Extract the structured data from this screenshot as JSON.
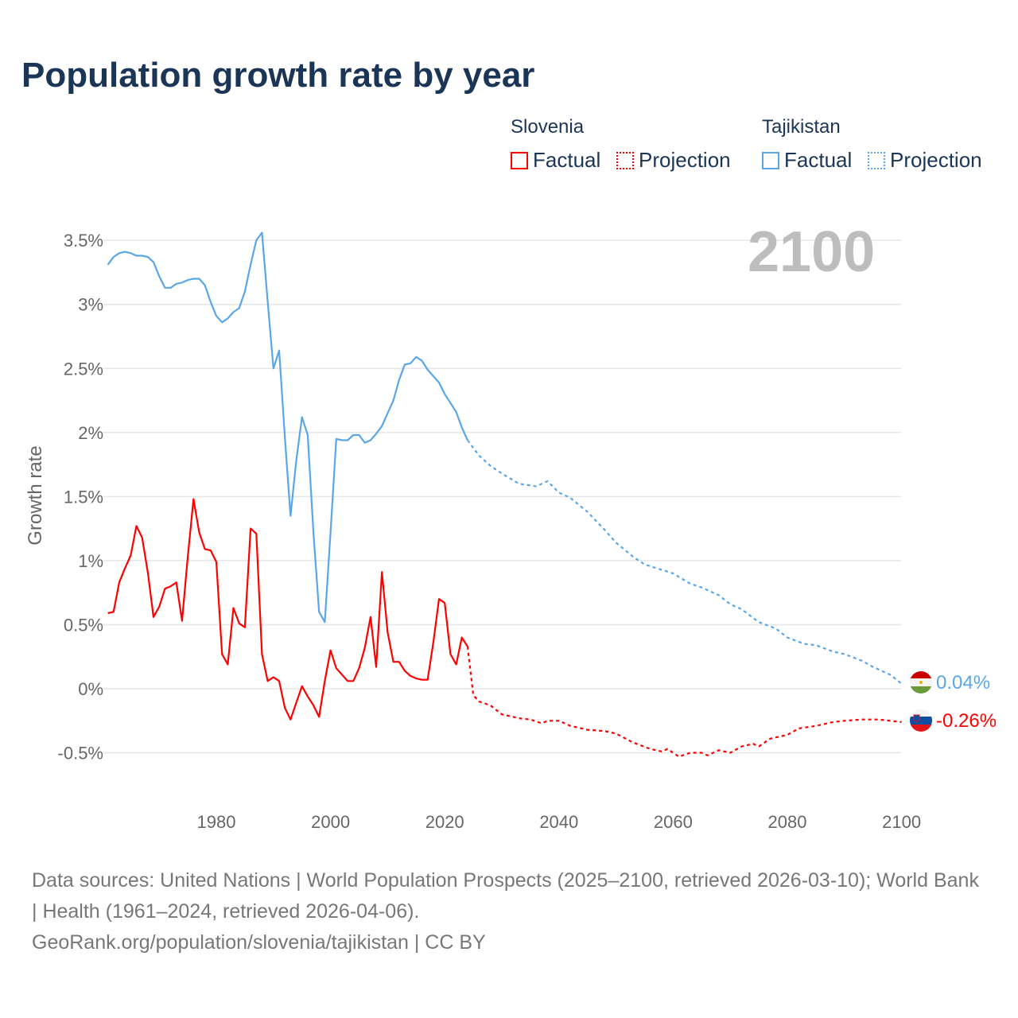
{
  "title": "Population growth rate by year",
  "legend": {
    "groups": [
      {
        "country": "Slovenia",
        "factual": "Factual",
        "projection": "Projection",
        "color": "#ff0000"
      },
      {
        "country": "Tajikistan",
        "factual": "Factual",
        "projection": "Projection",
        "color": "#5aa6ea"
      }
    ]
  },
  "year_display": "2100",
  "end_labels": {
    "tajikistan": "0.04%",
    "slovenia": "-0.26%"
  },
  "source": {
    "line1": "Data sources: United Nations | World Population Prospects (2025–2100, retrieved 2026-03-10); World Bank | Health (1961–2024, retrieved 2026-04-06).",
    "line2": "GeoRank.org/population/slovenia/tajikistan | CC BY"
  },
  "chart_data": {
    "type": "line",
    "title": "Population growth rate by year",
    "xlabel": "",
    "ylabel": "Growth rate",
    "xlim": [
      1961,
      2100
    ],
    "ylim": [
      -0.75,
      3.6
    ],
    "x_ticks": [
      {
        "v": 1980,
        "label": "1980"
      },
      {
        "v": 2000,
        "label": "2000"
      },
      {
        "v": 2020,
        "label": "2020"
      },
      {
        "v": 2040,
        "label": "2040"
      },
      {
        "v": 2060,
        "label": "2060"
      },
      {
        "v": 2080,
        "label": "2080"
      },
      {
        "v": 2100,
        "label": "2100"
      }
    ],
    "y_ticks": [
      {
        "v": -0.5,
        "label": "-0.5%"
      },
      {
        "v": 0,
        "label": "0%"
      },
      {
        "v": 0.5,
        "label": "0.5%"
      },
      {
        "v": 1,
        "label": "1%"
      },
      {
        "v": 1.5,
        "label": "1.5%"
      },
      {
        "v": 2,
        "label": "2%"
      },
      {
        "v": 2.5,
        "label": "2.5%"
      },
      {
        "v": 3,
        "label": "3%"
      },
      {
        "v": 3.5,
        "label": "3.5%"
      }
    ],
    "grid": true,
    "legend_placement": "top-right",
    "series": [
      {
        "name": "Tajikistan",
        "color": "#5aa6ea",
        "factual": {
          "x_start": 1961,
          "values": [
            3.31,
            3.37,
            3.4,
            3.41,
            3.4,
            3.38,
            3.38,
            3.37,
            3.33,
            3.22,
            3.13,
            3.13,
            3.16,
            3.17,
            3.19,
            3.2,
            3.2,
            3.15,
            3.02,
            2.91,
            2.86,
            2.89,
            2.94,
            2.97,
            3.1,
            3.31,
            3.5,
            3.56,
            3.02,
            2.5,
            2.64,
            1.96,
            1.35,
            1.78,
            2.12,
            1.98,
            1.22,
            0.6,
            0.52,
            1.22,
            1.95,
            1.94,
            1.94,
            1.98,
            1.98,
            1.92,
            1.94,
            1.99,
            2.05,
            2.15,
            2.25,
            2.41,
            2.53,
            2.54,
            2.59,
            2.56,
            2.49,
            2.44,
            2.39,
            2.3,
            2.23,
            2.16,
            2.04,
            1.94
          ]
        },
        "projection": [
          [
            2024,
            1.94
          ],
          [
            2026,
            1.82
          ],
          [
            2028,
            1.74
          ],
          [
            2030,
            1.68
          ],
          [
            2033,
            1.6
          ],
          [
            2036,
            1.58
          ],
          [
            2038,
            1.62
          ],
          [
            2040,
            1.53
          ],
          [
            2042,
            1.49
          ],
          [
            2045,
            1.38
          ],
          [
            2048,
            1.24
          ],
          [
            2050,
            1.14
          ],
          [
            2053,
            1.03
          ],
          [
            2055,
            0.97
          ],
          [
            2060,
            0.9
          ],
          [
            2063,
            0.82
          ],
          [
            2065,
            0.79
          ],
          [
            2068,
            0.73
          ],
          [
            2070,
            0.66
          ],
          [
            2072,
            0.62
          ],
          [
            2075,
            0.52
          ],
          [
            2078,
            0.47
          ],
          [
            2080,
            0.4
          ],
          [
            2083,
            0.35
          ],
          [
            2085,
            0.34
          ],
          [
            2088,
            0.29
          ],
          [
            2090,
            0.27
          ],
          [
            2093,
            0.22
          ],
          [
            2095,
            0.17
          ],
          [
            2098,
            0.11
          ],
          [
            2100,
            0.04
          ]
        ]
      },
      {
        "name": "Slovenia",
        "color": "#ff0000",
        "factual": {
          "x_start": 1961,
          "values": [
            0.59,
            0.6,
            0.83,
            0.94,
            1.04,
            1.27,
            1.18,
            0.91,
            0.56,
            0.64,
            0.78,
            0.8,
            0.83,
            0.53,
            1.03,
            1.48,
            1.22,
            1.09,
            1.08,
            0.99,
            0.27,
            0.19,
            0.63,
            0.51,
            0.48,
            1.25,
            1.21,
            0.27,
            0.06,
            0.09,
            0.06,
            -0.15,
            -0.24,
            -0.11,
            0.02,
            -0.06,
            -0.13,
            -0.22,
            0.06,
            0.3,
            0.16,
            0.11,
            0.06,
            0.06,
            0.16,
            0.32,
            0.56,
            0.17,
            0.91,
            0.44,
            0.21,
            0.21,
            0.14,
            0.1,
            0.08,
            0.07,
            0.07,
            0.36,
            0.7,
            0.67,
            0.27,
            0.19,
            0.4,
            0.33
          ]
        },
        "projection": [
          [
            2024,
            0.33
          ],
          [
            2025,
            -0.05
          ],
          [
            2026,
            -0.1
          ],
          [
            2028,
            -0.13
          ],
          [
            2030,
            -0.2
          ],
          [
            2033,
            -0.23
          ],
          [
            2035,
            -0.24
          ],
          [
            2037,
            -0.27
          ],
          [
            2038,
            -0.25
          ],
          [
            2040,
            -0.25
          ],
          [
            2042,
            -0.29
          ],
          [
            2045,
            -0.32
          ],
          [
            2048,
            -0.33
          ],
          [
            2050,
            -0.35
          ],
          [
            2053,
            -0.42
          ],
          [
            2056,
            -0.47
          ],
          [
            2058,
            -0.49
          ],
          [
            2059,
            -0.47
          ],
          [
            2061,
            -0.53
          ],
          [
            2063,
            -0.5
          ],
          [
            2065,
            -0.5
          ],
          [
            2066,
            -0.52
          ],
          [
            2068,
            -0.48
          ],
          [
            2070,
            -0.5
          ],
          [
            2072,
            -0.45
          ],
          [
            2074,
            -0.43
          ],
          [
            2075,
            -0.45
          ],
          [
            2077,
            -0.39
          ],
          [
            2080,
            -0.36
          ],
          [
            2082,
            -0.31
          ],
          [
            2085,
            -0.29
          ],
          [
            2088,
            -0.26
          ],
          [
            2090,
            -0.25
          ],
          [
            2093,
            -0.24
          ],
          [
            2096,
            -0.24
          ],
          [
            2098,
            -0.25
          ],
          [
            2100,
            -0.26
          ]
        ]
      }
    ]
  }
}
